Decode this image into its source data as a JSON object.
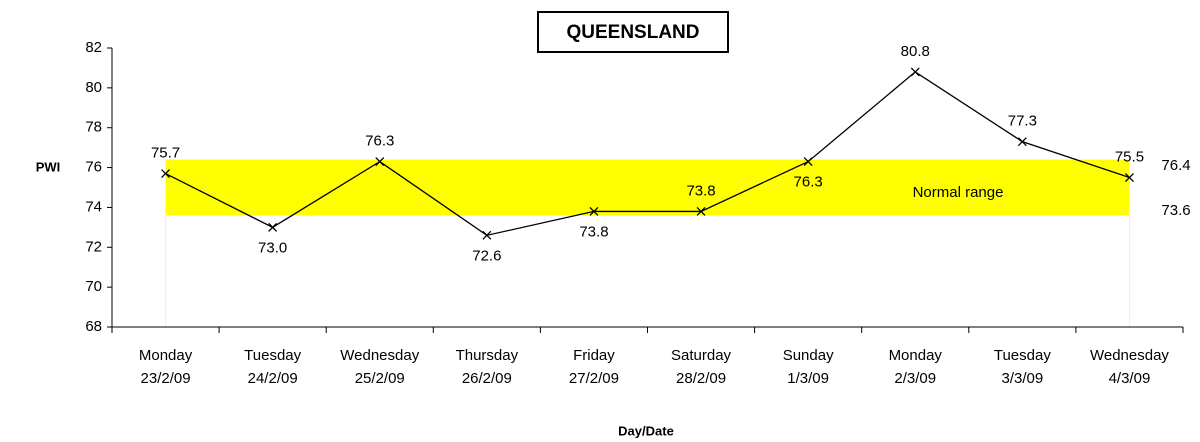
{
  "chart_data": {
    "type": "line",
    "title": "QUEENSLAND",
    "x_label": "Day/Date",
    "y_label": "PWI",
    "categories": [
      "Monday 23/2/09",
      "Tuesday 24/2/09",
      "Wednesday 25/2/09",
      "Thursday 26/2/09",
      "Friday 27/2/09",
      "Saturday 28/2/09",
      "Sunday 1/3/09",
      "Monday 2/3/09",
      "Tuesday 3/3/09",
      "Wednesday 4/3/09"
    ],
    "values": [
      75.7,
      73.0,
      76.3,
      72.6,
      73.8,
      73.8,
      76.3,
      80.8,
      77.3,
      75.5
    ],
    "value_labels": [
      "75.7",
      "73.0",
      "76.3",
      "72.6",
      "73.8",
      "73.8",
      "76.3",
      "80.8",
      "77.3",
      "75.5"
    ],
    "color": "#000000",
    "normal_range": {
      "label": "Normal range",
      "low": 73.6,
      "high": 76.4,
      "color": "#ffff00"
    },
    "ylim": [
      68,
      82
    ],
    "yticks": [
      68,
      70,
      72,
      74,
      76,
      78,
      80,
      82
    ],
    "grid": false
  }
}
